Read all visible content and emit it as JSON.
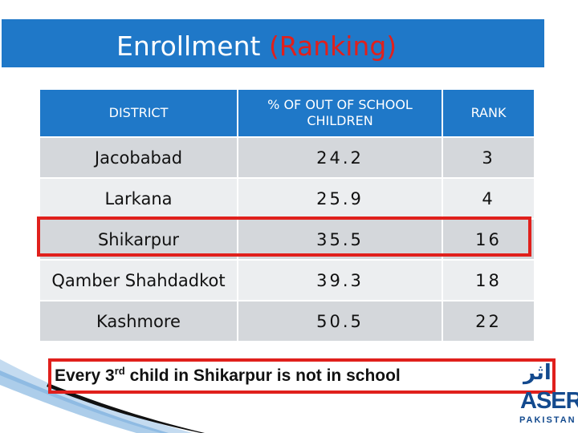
{
  "title": {
    "main": "Enrollment",
    "accent": "(Ranking)"
  },
  "colors": {
    "header_blue": "#1f78c8",
    "highlight_red": "#e0201c",
    "row_dark": "#d4d7db",
    "row_light": "#eceef0",
    "logo_blue": "#134a8e"
  },
  "table": {
    "headers": [
      "DISTRICT",
      "% OF OUT OF SCHOOL CHILDREN",
      "RANK"
    ],
    "rows": [
      {
        "district": "Jacobabad",
        "pct": "24.2",
        "rank": "3"
      },
      {
        "district": "Larkana",
        "pct": "25.9",
        "rank": "4"
      },
      {
        "district": "Shikarpur",
        "pct": "35.5",
        "rank": "16"
      },
      {
        "district": "Qamber Shahdadkot",
        "pct": "39.3",
        "rank": "18"
      },
      {
        "district": "Kashmore",
        "pct": "50.5",
        "rank": "22"
      }
    ],
    "highlighted_district": "Shikarpur"
  },
  "note": {
    "before": "Every 3",
    "sup": "rd",
    "after": " child in Shikarpur is not in school"
  },
  "logo": {
    "urdu": "اثر",
    "brand": "ASER",
    "country": "PAKISTAN"
  }
}
